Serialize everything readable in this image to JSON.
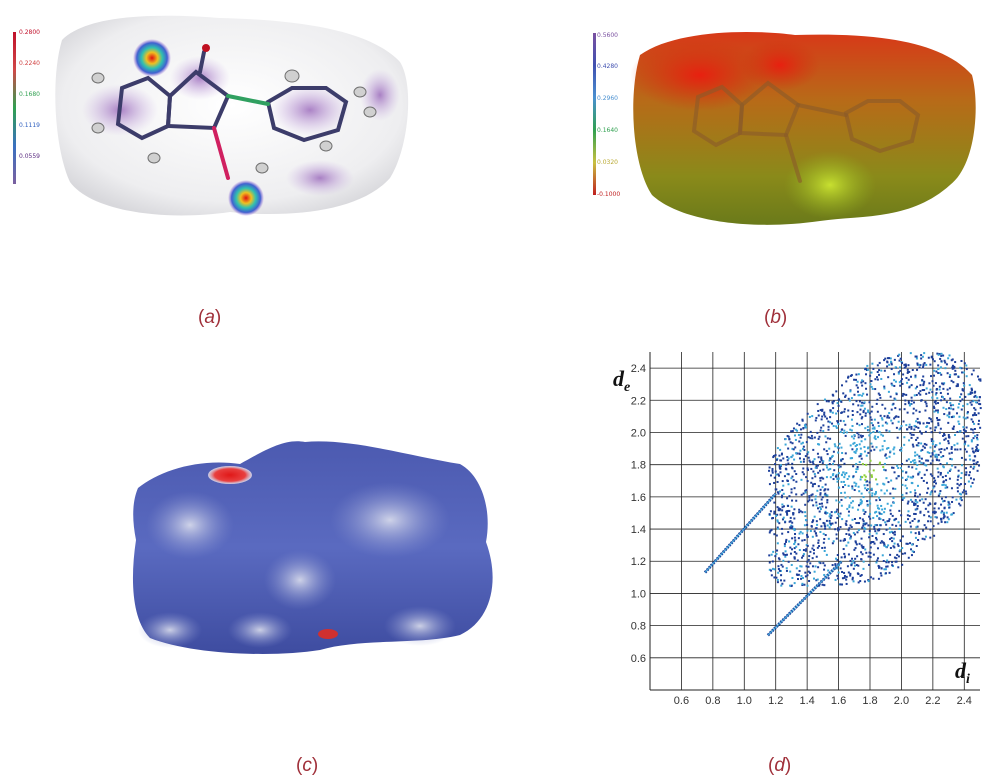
{
  "figure": {
    "panels": [
      {
        "caption_open": "(",
        "caption_letter": "a",
        "caption_close": ")",
        "colorbar_labels": [
          "0.2800",
          "0.2240",
          "0.1680",
          "0.1119",
          "0.0559"
        ],
        "colorbar_colors": [
          "#c0102a",
          "#d04040",
          "#30a050",
          "#3060c0",
          "#5a2a80"
        ]
      },
      {
        "caption_open": "(",
        "caption_letter": "b",
        "caption_close": ")",
        "colorbar_labels": [
          "0.5600",
          "0.4280",
          "0.2960",
          "0.1640",
          "0.0320",
          "-0.1000"
        ],
        "colorbar_colors": [
          "#7a50a0",
          "#4050b0",
          "#4a90d0",
          "#30a050",
          "#c8c040",
          "#c02020"
        ]
      },
      {
        "caption_open": "(",
        "caption_letter": "c",
        "caption_close": ")"
      },
      {
        "caption_open": "(",
        "caption_letter": "d",
        "caption_close": ")"
      }
    ]
  },
  "chart_data": {
    "type": "heatmap",
    "title": "",
    "xlabel_main": "d",
    "xlabel_sub": "i",
    "ylabel_main": "d",
    "ylabel_sub": "e",
    "xlim": [
      0.4,
      2.5
    ],
    "ylim": [
      0.4,
      2.5
    ],
    "x_ticks": [
      0.6,
      0.8,
      1.0,
      1.2,
      1.4,
      1.6,
      1.8,
      2.0,
      2.2,
      2.4
    ],
    "y_ticks": [
      0.6,
      0.8,
      1.0,
      1.2,
      1.4,
      1.6,
      1.8,
      2.0,
      2.2,
      2.4
    ],
    "x_tick_labels": [
      "0.6",
      "0.8",
      "1.0",
      "1.2",
      "1.4",
      "1.6",
      "1.8",
      "2.0",
      "2.2",
      "2.4"
    ],
    "y_tick_labels": [
      "0.6",
      "0.8",
      "1.0",
      "1.2",
      "1.4",
      "1.6",
      "1.8",
      "2.0",
      "2.2",
      "2.4"
    ],
    "grid": true,
    "hotspot": {
      "di": 1.8,
      "de": 1.78
    },
    "spikes": [
      {
        "from": [
          0.75,
          1.13
        ],
        "to": [
          1.2,
          1.62
        ]
      },
      {
        "from": [
          1.15,
          0.74
        ],
        "to": [
          1.62,
          1.2
        ]
      }
    ],
    "colors": {
      "sparse": "#1d3f9a",
      "medium": "#3aa6d8",
      "dense": "#8fd13a"
    }
  }
}
